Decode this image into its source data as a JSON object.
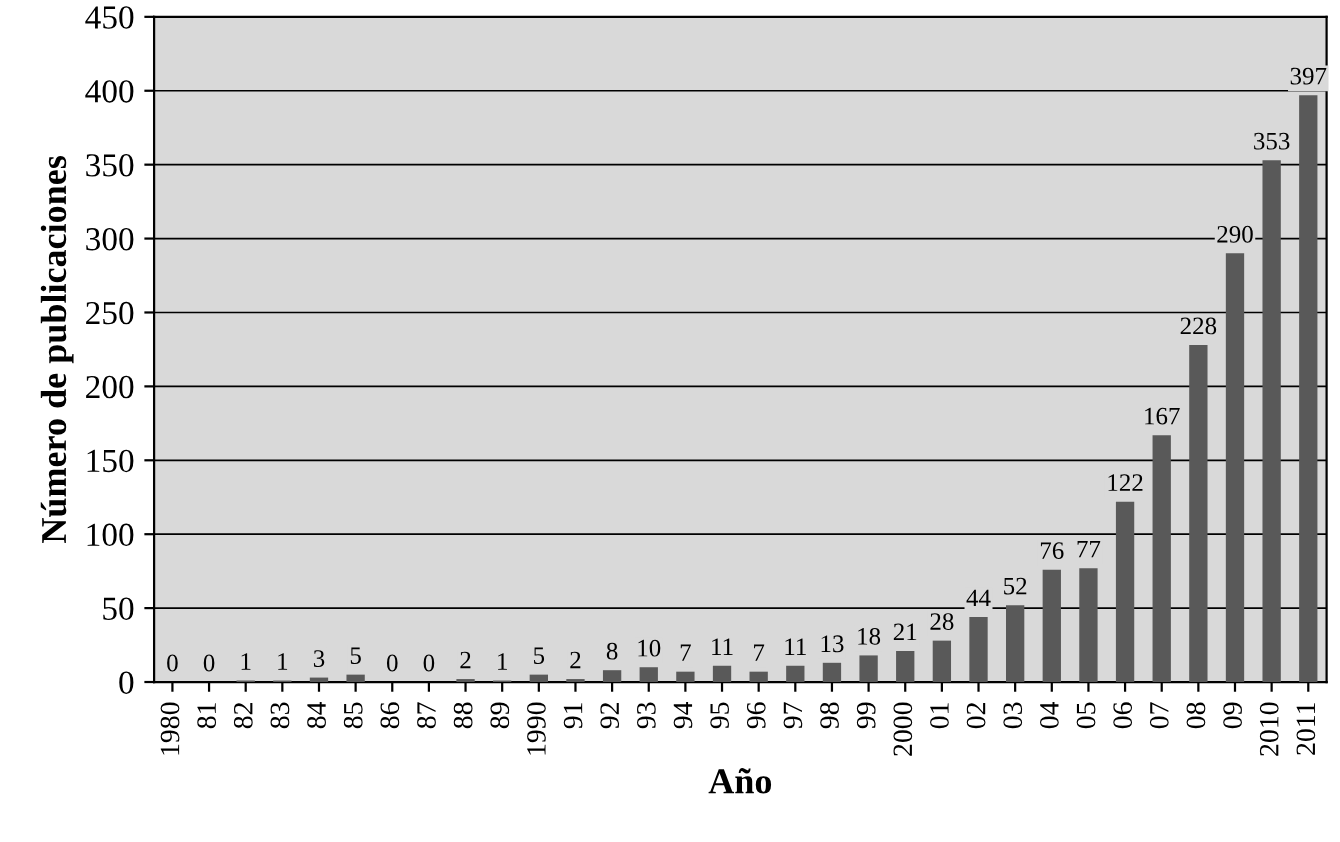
{
  "chart_data": {
    "type": "bar",
    "xlabel": "Año",
    "ylabel": "Número de publicaciones",
    "categories": [
      "1980",
      "81",
      "82",
      "83",
      "84",
      "85",
      "86",
      "87",
      "88",
      "89",
      "1990",
      "91",
      "92",
      "93",
      "94",
      "95",
      "96",
      "97",
      "98",
      "99",
      "2000",
      "01",
      "02",
      "03",
      "04",
      "05",
      "06",
      "07",
      "08",
      "09",
      "2010",
      "2011"
    ],
    "values": [
      0,
      0,
      1,
      1,
      3,
      5,
      0,
      0,
      2,
      1,
      5,
      2,
      8,
      10,
      7,
      11,
      7,
      11,
      13,
      18,
      21,
      28,
      44,
      52,
      76,
      77,
      122,
      167,
      228,
      290,
      353,
      397
    ],
    "color": "#595959",
    "ylim": [
      0,
      450
    ],
    "yticks": [
      0,
      50,
      100,
      150,
      200,
      250,
      300,
      350,
      400,
      450
    ],
    "grid": "y",
    "data_labels": true
  }
}
